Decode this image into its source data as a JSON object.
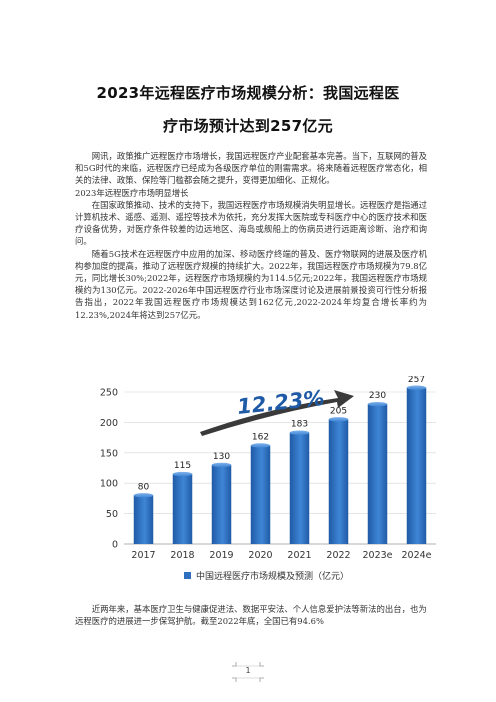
{
  "title": {
    "line1": "2023年远程医疗市场规模分析：我国远程医",
    "line2": "疗市场预计达到257亿元"
  },
  "paragraphs": {
    "p1": "网讯，政策推广远程医疗市场增长，我国远程医疗产业配套基本完善。当下，互联网的普及和5G时代的来临，远程医疗已经成为各级医疗单位的刚需需求。将来随着远程医疗常态化，相关的法律、政策、保险等门槛都会随之提升，变得更加细化、正规化。",
    "heading": "2023年远程医疗市场明显增长",
    "p2": "在国家政策推动、技术的支持下，我国远程医疗市场规模消失明显增长。远程医疗是指通过计算机技术、遥感、遥测、遥控等技术为依托，充分发挥大医院或专科医疗中心的医疗技术和医疗设备优势，对医疗条件较差的边远地区、海岛或舰船上的伤病员进行远距离诊断、治疗和询问。",
    "p3": "随着5G技术在远程医疗中应用的加深、移动医疗终端的普及、医疗物联网的进展及医疗机构参加度的提高，推动了远程医疗规模的持续扩大。2022年，我国远程医疗市场规模为79.8亿元，同比增长30%;2022年，远程医疗市场规模约为114.5亿元;2022年，我国远程医疗市场规模约为130亿元。2022-2026年中国远程医疗行业市场深度讨论及进展前景投资可行性分析报告指出，2022年我国远程医疗市场规模达到162亿元,2022-2024年均复合增长率约为12.23%,2024年将达到257亿元。",
    "p4": "近两年来，基本医疗卫生与健康促进法、数据平安法、个人信息爱护法等新法的出台，也为远程医疗的进展进一步保驾护航。截至2022年底，全国已有94.6%"
  },
  "chart_data": {
    "type": "bar",
    "categories": [
      "2017",
      "2018",
      "2019",
      "2020",
      "2021",
      "2022",
      "2023e",
      "2024e"
    ],
    "values": [
      80,
      115,
      130,
      162,
      183,
      205,
      230,
      257
    ],
    "ylim": [
      0,
      250
    ],
    "yticks": [
      0,
      50,
      100,
      150,
      200,
      250
    ],
    "grid": true,
    "legend": "中国远程医疗市场规模及预测（亿元）",
    "legend_position": "bottom",
    "annotation": "12.23%",
    "bar_color": "#2f6fbf"
  },
  "page_number": "1"
}
